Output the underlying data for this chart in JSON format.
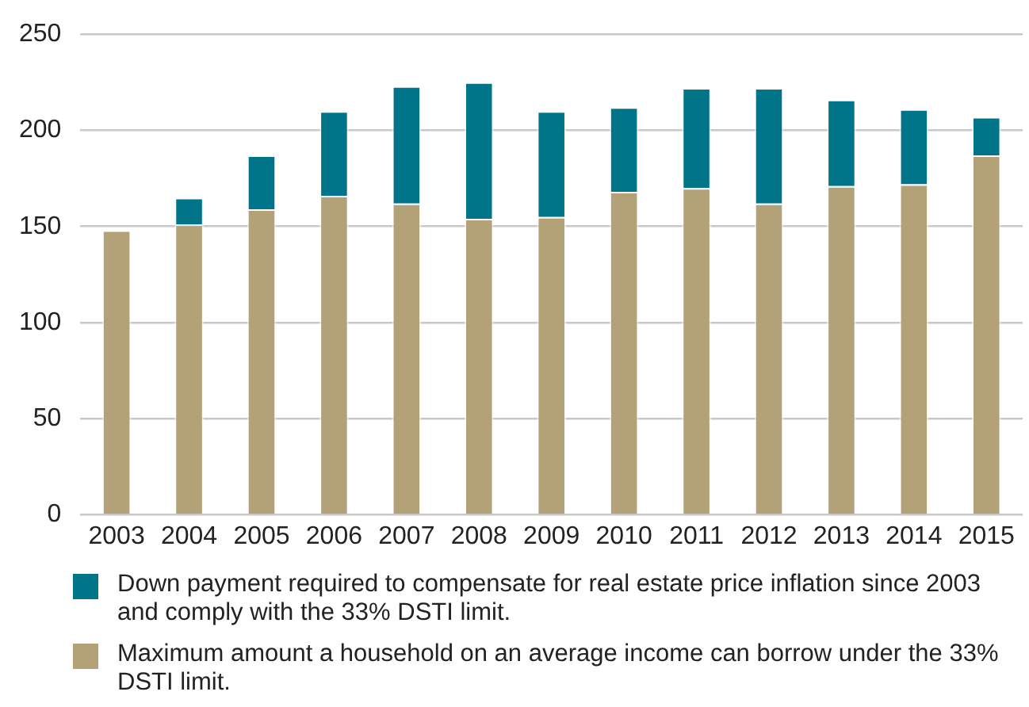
{
  "chart_data": {
    "type": "bar",
    "stacked": true,
    "categories": [
      "2003",
      "2004",
      "2005",
      "2006",
      "2007",
      "2008",
      "2009",
      "2010",
      "2011",
      "2012",
      "2013",
      "2014",
      "2015"
    ],
    "series": [
      {
        "name": "Maximum amount a household on an average income can borrow under the 33% DSTI limit.",
        "color": "#b3a178",
        "values": [
          148,
          151,
          159,
          166,
          162,
          154,
          155,
          168,
          170,
          162,
          171,
          172,
          187
        ]
      },
      {
        "name": "Down payment required to compensate for real estate price inflation since 2003 and comply with the 33% DSTI limit.",
        "color": "#00758a",
        "values": [
          0,
          14,
          28,
          44,
          61,
          71,
          55,
          44,
          52,
          60,
          45,
          39,
          20
        ]
      }
    ],
    "ylim": [
      0,
      250
    ],
    "yticks": [
      0,
      50,
      100,
      150,
      200,
      250
    ],
    "grid": "y",
    "legend": "bottom"
  }
}
